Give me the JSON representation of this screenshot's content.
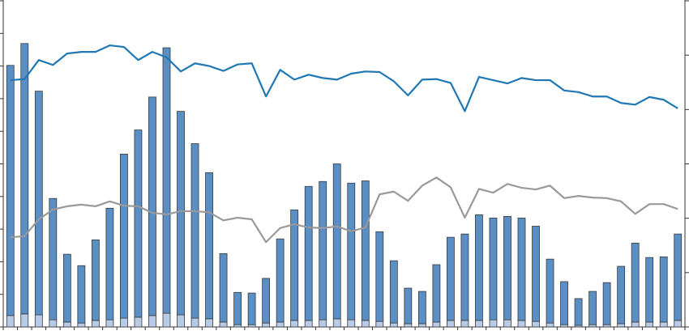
{
  "chart_data": {
    "type": "bar",
    "stacked": true,
    "categories": [
      null,
      null,
      null,
      null,
      null,
      null,
      null,
      null,
      null,
      null,
      null,
      null,
      null,
      null,
      null,
      null,
      null,
      null,
      null,
      null,
      null,
      null,
      null,
      null,
      null,
      null,
      null,
      null,
      null,
      null,
      null,
      null,
      null,
      null,
      null,
      null,
      null,
      null,
      null,
      null,
      null,
      null,
      null,
      null,
      null,
      null,
      null,
      null
    ],
    "series": [
      {
        "type": "bar",
        "color": "#b7cbe6",
        "values": [
          3.5,
          4,
          3.7,
          2.2,
          1.5,
          1.2,
          2,
          2.2,
          2.7,
          3,
          3.5,
          4.2,
          3.7,
          2.7,
          2.5,
          1.5,
          0.7,
          0.7,
          1.2,
          1.5,
          2,
          2,
          2.2,
          2.5,
          2.2,
          2,
          1.7,
          1.2,
          1,
          1,
          1.5,
          2,
          2,
          2,
          2.2,
          2.2,
          2,
          1.7,
          1.2,
          0.7,
          0.5,
          0.7,
          0.7,
          1,
          1.5,
          1.5,
          1.5,
          2
        ]
      },
      {
        "type": "bar",
        "color": "#5a8fc6",
        "values": [
          76.7,
          82.9,
          68.6,
          37.2,
          20.8,
          17.6,
          24.7,
          34.2,
          50.3,
          57.4,
          67,
          81.4,
          62.4,
          53.5,
          44.8,
          21,
          9.9,
          9.7,
          13.7,
          25.5,
          33.9,
          41.1,
          42.4,
          47.5,
          41.9,
          42.8,
          27.5,
          19.1,
          10.9,
          9.9,
          17.6,
          25.5,
          26.5,
          32.4,
          31.2,
          31.7,
          31.4,
          29.2,
          19.6,
          13.2,
          8.2,
          10.2,
          12.9,
          17.6,
          24.2,
          19.8,
          20,
          26.5
        ]
      },
      {
        "type": "line",
        "axis": "y2",
        "color": "#1f77b4",
        "values": [
          4.54,
          4.56,
          4.91,
          4.82,
          5.03,
          5.06,
          5.06,
          5.18,
          5.15,
          4.91,
          5.06,
          4.96,
          4.7,
          4.85,
          4.8,
          4.71,
          4.83,
          4.85,
          4.24,
          4.73,
          4.55,
          4.64,
          4.58,
          4.55,
          4.66,
          4.7,
          4.69,
          4.52,
          4.26,
          4.55,
          4.56,
          4.49,
          3.97,
          4.6,
          4.54,
          4.48,
          4.58,
          4.54,
          4.54,
          4.35,
          4.32,
          4.24,
          4.24,
          4.12,
          4.09,
          4.23,
          4.18,
          4.02
        ]
      },
      {
        "type": "line",
        "axis": "y2",
        "color": "#999999",
        "values": [
          1.65,
          1.67,
          1.98,
          2.16,
          2.22,
          2.25,
          2.22,
          2.31,
          2.23,
          2.22,
          2.1,
          2.07,
          2.13,
          2.13,
          2.11,
          1.96,
          2.01,
          1.98,
          1.56,
          1.82,
          1.89,
          1.83,
          1.82,
          1.85,
          1.76,
          1.83,
          2.44,
          2.49,
          2.32,
          2.6,
          2.75,
          2.57,
          2.01,
          2.54,
          2.47,
          2.63,
          2.56,
          2.53,
          2.6,
          2.37,
          2.41,
          2.38,
          2.37,
          2.31,
          2.08,
          2.26,
          2.26,
          2.17
        ]
      }
    ],
    "ylim": [
      0,
      100
    ],
    "yticks": [
      0,
      10,
      20,
      30,
      40,
      50,
      60,
      70,
      80,
      90,
      100
    ],
    "y2lim": [
      0,
      6
    ],
    "y2ticks": [
      0,
      1,
      2,
      3,
      4,
      5,
      6
    ]
  }
}
